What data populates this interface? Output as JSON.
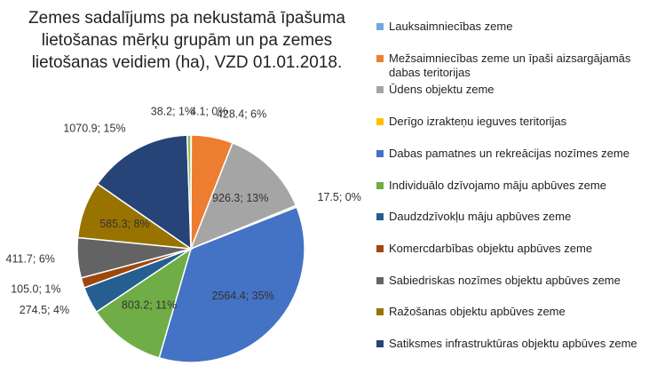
{
  "chart_data": {
    "type": "pie",
    "title": "Zemes sadalījums pa nekustamā īpašuma lietošanas mērķu grupām un pa zemes lietošanas veidiem (ha), VZD 01.01.2018.",
    "categories": [
      "Lauksaimniecības zeme",
      "Mežsaimniecības zeme un īpaši aizsargājamās dabas teritorijas",
      "Ūdens objektu zeme",
      "Derīgo izrakteņu ieguves teritorijas",
      "Dabas pamatnes un rekreācijas nozīmes zeme",
      "Individuālo dzīvojamo māju apbūves zeme",
      "Daudzdzīvokļu māju apbūves zeme",
      "Komercdarbības objektu apbūves zeme",
      "Sabiedriskas nozīmes objektu apbūves zeme",
      "Ražošanas objektu apbūves zeme",
      "Satiksmes infrastruktūras objektu apbūves zeme",
      null
    ],
    "values": [
      4.1,
      428.4,
      926.3,
      17.5,
      2564.4,
      803.2,
      274.5,
      105.0,
      411.7,
      585.3,
      1070.9,
      38.2
    ],
    "value_labels": [
      "4.1; 0%",
      "428.4; 6%",
      "926.3; 13%",
      "17.5; 0%",
      "2564.4; 35%",
      "803.2; 11%",
      "274.5; 4%",
      "105.0; 1%",
      "411.7; 6%",
      "585.3; 8%",
      "1070.9; 15%",
      "38.2; 1%"
    ],
    "colors": [
      "#6fa8dc",
      "#ed7d31",
      "#a5a5a5",
      "#ffc000",
      "#4472c4",
      "#70ad47",
      "#255e91",
      "#9e480e",
      "#636363",
      "#997300",
      "#264478",
      "#8fbc5a"
    ],
    "legend": "right"
  }
}
